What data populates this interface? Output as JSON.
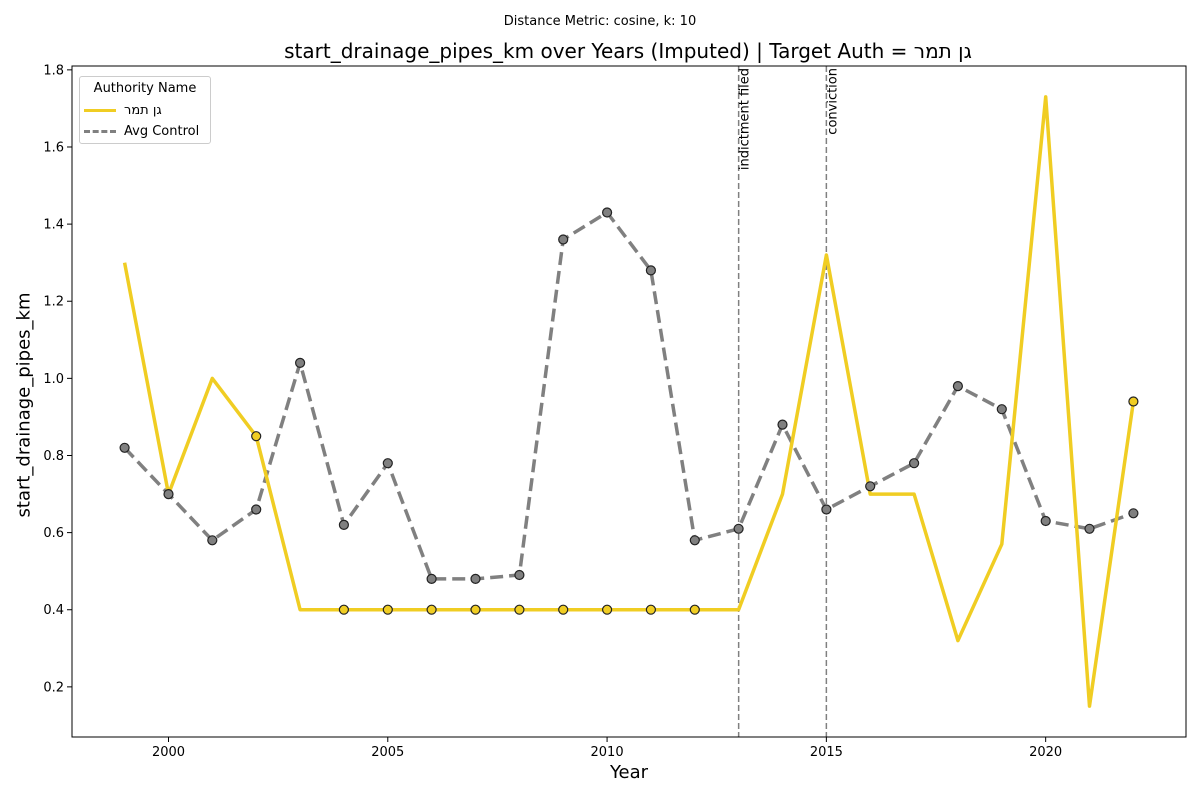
{
  "chart_data": {
    "type": "line",
    "suptitle": "Distance Metric: cosine, k: 10",
    "title": "start_drainage_pipes_km over Years (Imputed) | Target Auth = גן תמר",
    "xlabel": "Year",
    "ylabel": "start_drainage_pipes_km",
    "xlim": [
      1997.8,
      2023.2
    ],
    "ylim": [
      0.07,
      1.81
    ],
    "x_ticks": [
      2000,
      2005,
      2010,
      2015,
      2020
    ],
    "y_ticks": [
      0.2,
      0.4,
      0.6,
      0.8,
      1.0,
      1.2,
      1.4,
      1.6,
      1.8
    ],
    "x_tick_labels": [
      "2000",
      "2005",
      "2010",
      "2015",
      "2020"
    ],
    "y_tick_labels": [
      "0.2",
      "0.4",
      "0.6",
      "0.8",
      "1.0",
      "1.2",
      "1.4",
      "1.6",
      "1.8"
    ],
    "legend": {
      "title": "Authority Name",
      "position": "top-left"
    },
    "grid": false,
    "series": [
      {
        "name": "גן תמר",
        "color": "#f0cd23",
        "style": "solid",
        "x": [
          1999,
          2000,
          2001,
          2002,
          2003,
          2004,
          2005,
          2006,
          2007,
          2008,
          2009,
          2010,
          2011,
          2012,
          2013,
          2014,
          2015,
          2016,
          2017,
          2018,
          2019,
          2020,
          2021,
          2022
        ],
        "y": [
          1.3,
          0.7,
          1.0,
          0.85,
          0.4,
          0.4,
          0.4,
          0.4,
          0.4,
          0.4,
          0.4,
          0.4,
          0.4,
          0.4,
          0.4,
          0.7,
          1.32,
          0.7,
          0.7,
          0.32,
          0.57,
          1.73,
          0.15,
          0.94
        ],
        "observed_x": [
          2002,
          2004,
          2005,
          2006,
          2007,
          2008,
          2009,
          2010,
          2011,
          2012,
          2022
        ]
      },
      {
        "name": "Avg Control",
        "color": "#808080",
        "style": "dashed",
        "x": [
          1999,
          2000,
          2001,
          2002,
          2003,
          2004,
          2005,
          2006,
          2007,
          2008,
          2009,
          2010,
          2011,
          2012,
          2013,
          2014,
          2015,
          2016,
          2017,
          2018,
          2019,
          2020,
          2021,
          2022
        ],
        "y": [
          0.82,
          0.7,
          0.58,
          0.66,
          1.04,
          0.62,
          0.78,
          0.48,
          0.48,
          0.49,
          1.36,
          1.43,
          1.28,
          0.58,
          0.61,
          0.88,
          0.66,
          0.72,
          0.78,
          0.98,
          0.92,
          0.63,
          0.61,
          0.65
        ],
        "observed_x": [
          1999,
          2000,
          2001,
          2002,
          2003,
          2004,
          2005,
          2006,
          2007,
          2008,
          2009,
          2010,
          2011,
          2012,
          2013,
          2014,
          2015,
          2016,
          2017,
          2018,
          2019,
          2020,
          2021,
          2022
        ]
      }
    ],
    "vlines": [
      {
        "x": 2013,
        "label": "indictment filed"
      },
      {
        "x": 2015,
        "label": "conviction"
      }
    ]
  }
}
